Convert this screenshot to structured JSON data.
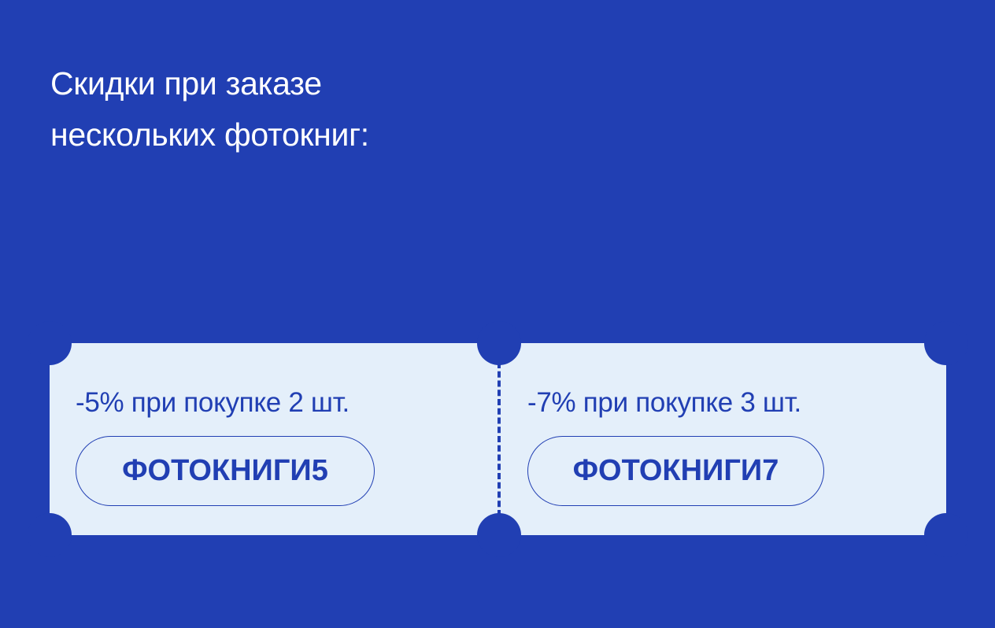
{
  "title": {
    "line1": "Скидки при заказе",
    "line2": "нескольких фотокниг:"
  },
  "colors": {
    "background": "#213fb3",
    "ticket": "#e4effa",
    "text": "#213fb3"
  },
  "coupons": [
    {
      "offer": "-5% при покупке 2 шт.",
      "code": "ФОТОКНИГИ5"
    },
    {
      "offer": "-7% при покупке 3 шт.",
      "code": "ФОТОКНИГИ7"
    }
  ]
}
